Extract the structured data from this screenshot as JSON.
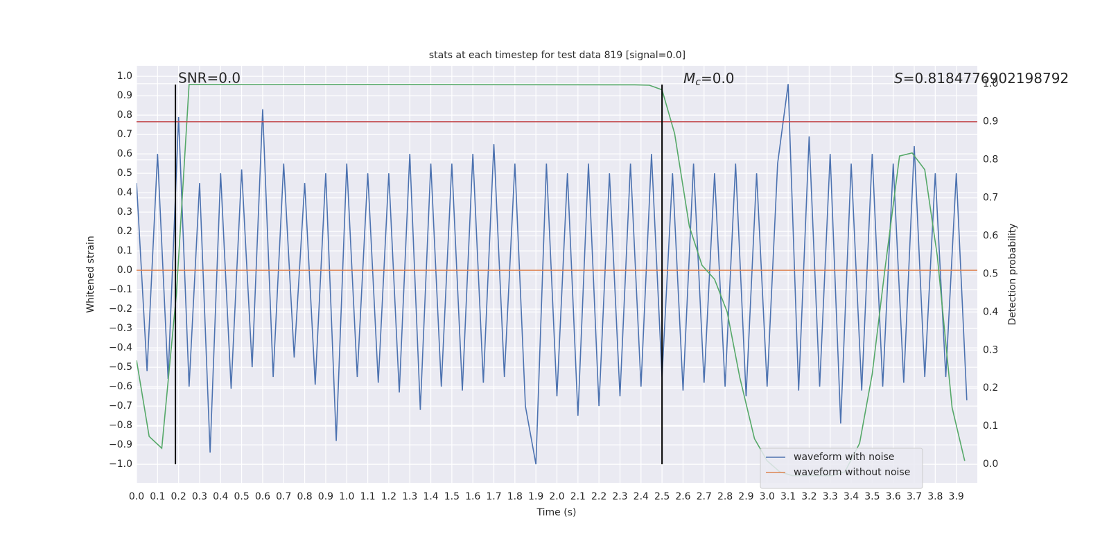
{
  "chart_data": {
    "type": "line",
    "title": "stats at each timestep for test data 819 [signal=0.0]",
    "xlabel": "Time (s)",
    "ylabel": "Whitened strain",
    "y2label": "Detection probability",
    "annotations": {
      "snr": "SNR=0.0",
      "mc": {
        "symbol": "M",
        "subscript": "c",
        "text": "=0.0"
      },
      "s": {
        "symbol": "S",
        "text": "=0.8184776902198792"
      }
    },
    "xlim": [
      0,
      4.0
    ],
    "ylim": [
      -1.096,
      1.054
    ],
    "y2lim": [
      -0.049,
      1.047
    ],
    "xticks": [
      {
        "value": 0,
        "label": "0.0"
      },
      {
        "value": 0.1,
        "label": "0.1"
      },
      {
        "value": 0.2,
        "label": "0.2"
      },
      {
        "value": 0.3,
        "label": "0.3"
      },
      {
        "value": 0.4,
        "label": "0.4"
      },
      {
        "value": 0.5,
        "label": "0.5"
      },
      {
        "value": 0.6,
        "label": "0.6"
      },
      {
        "value": 0.7,
        "label": "0.7"
      },
      {
        "value": 0.8,
        "label": "0.8"
      },
      {
        "value": 0.9,
        "label": "0.9"
      },
      {
        "value": 1,
        "label": "1.0"
      },
      {
        "value": 1.1,
        "label": "1.1"
      },
      {
        "value": 1.2,
        "label": "1.2"
      },
      {
        "value": 1.3,
        "label": "1.3"
      },
      {
        "value": 1.4,
        "label": "1.4"
      },
      {
        "value": 1.5,
        "label": "1.5"
      },
      {
        "value": 1.6,
        "label": "1.6"
      },
      {
        "value": 1.7,
        "label": "1.7"
      },
      {
        "value": 1.8,
        "label": "1.8"
      },
      {
        "value": 1.9,
        "label": "1.9"
      },
      {
        "value": 2,
        "label": "2.0"
      },
      {
        "value": 2.1,
        "label": "2.1"
      },
      {
        "value": 2.2,
        "label": "2.2"
      },
      {
        "value": 2.3,
        "label": "2.3"
      },
      {
        "value": 2.4,
        "label": "2.4"
      },
      {
        "value": 2.5,
        "label": "2.5"
      },
      {
        "value": 2.6,
        "label": "2.6"
      },
      {
        "value": 2.7,
        "label": "2.7"
      },
      {
        "value": 2.8,
        "label": "2.8"
      },
      {
        "value": 2.9,
        "label": "2.9"
      },
      {
        "value": 3,
        "label": "3.0"
      },
      {
        "value": 3.1,
        "label": "3.1"
      },
      {
        "value": 3.2,
        "label": "3.2"
      },
      {
        "value": 3.3,
        "label": "3.3"
      },
      {
        "value": 3.4,
        "label": "3.4"
      },
      {
        "value": 3.5,
        "label": "3.5"
      },
      {
        "value": 3.6,
        "label": "3.6"
      },
      {
        "value": 3.7,
        "label": "3.7"
      },
      {
        "value": 3.8,
        "label": "3.8"
      },
      {
        "value": 3.9,
        "label": "3.9"
      }
    ],
    "yticks": [
      {
        "value": -1,
        "label": "−1.0"
      },
      {
        "value": -0.9,
        "label": "−0.9"
      },
      {
        "value": -0.8,
        "label": "−0.8"
      },
      {
        "value": -0.7,
        "label": "−0.7"
      },
      {
        "value": -0.6,
        "label": "−0.6"
      },
      {
        "value": -0.5,
        "label": "−0.5"
      },
      {
        "value": -0.4,
        "label": "−0.4"
      },
      {
        "value": -0.3,
        "label": "−0.3"
      },
      {
        "value": -0.2,
        "label": "−0.2"
      },
      {
        "value": -0.1,
        "label": "−0.1"
      },
      {
        "value": 0,
        "label": "0.0"
      },
      {
        "value": 0.1,
        "label": "0.1"
      },
      {
        "value": 0.2,
        "label": "0.2"
      },
      {
        "value": 0.3,
        "label": "0.3"
      },
      {
        "value": 0.4,
        "label": "0.4"
      },
      {
        "value": 0.5,
        "label": "0.5"
      },
      {
        "value": 0.6,
        "label": "0.6"
      },
      {
        "value": 0.7,
        "label": "0.7"
      },
      {
        "value": 0.8,
        "label": "0.8"
      },
      {
        "value": 0.9,
        "label": "0.9"
      },
      {
        "value": 1,
        "label": "1.0"
      }
    ],
    "y2ticks": [
      {
        "value": 0,
        "label": "0.0"
      },
      {
        "value": 0.1,
        "label": "0.1"
      },
      {
        "value": 0.2,
        "label": "0.2"
      },
      {
        "value": 0.3,
        "label": "0.3"
      },
      {
        "value": 0.4,
        "label": "0.4"
      },
      {
        "value": 0.5,
        "label": "0.5"
      },
      {
        "value": 0.6,
        "label": "0.6"
      },
      {
        "value": 0.7,
        "label": "0.7"
      },
      {
        "value": 0.8,
        "label": "0.8"
      },
      {
        "value": 0.9,
        "label": "0.9"
      },
      {
        "value": 1,
        "label": "1.0"
      }
    ],
    "grid": true,
    "legend": "lower right",
    "vlines": {
      "x": [
        0.185,
        2.5
      ],
      "range": [
        -1.0,
        0.957
      ],
      "color": "#000000"
    },
    "hline": {
      "y": 0.9,
      "axis": "y2",
      "color": "#c44e52"
    },
    "series": [
      {
        "name": "waveform with noise",
        "color": "#4c72b0",
        "x": [
          0,
          0.05,
          0.1,
          0.15,
          0.2,
          0.25,
          0.3,
          0.35,
          0.4,
          0.45,
          0.5,
          0.55,
          0.6,
          0.65,
          0.7,
          0.75,
          0.8,
          0.85,
          0.9,
          0.95,
          1,
          1.05,
          1.1,
          1.15,
          1.2,
          1.25,
          1.3,
          1.35,
          1.4,
          1.45,
          1.5,
          1.55,
          1.6,
          1.65,
          1.7,
          1.75,
          1.8,
          1.85,
          1.9,
          1.95,
          2,
          2.05,
          2.1,
          2.15,
          2.2,
          2.25,
          2.3,
          2.35,
          2.4,
          2.45,
          2.5,
          2.55,
          2.6,
          2.65,
          2.7,
          2.75,
          2.8,
          2.85,
          2.9,
          2.95,
          3,
          3.05,
          3.1,
          3.15,
          3.2,
          3.25,
          3.3,
          3.35,
          3.4,
          3.45,
          3.5,
          3.55,
          3.6,
          3.65,
          3.7,
          3.75,
          3.8,
          3.85,
          3.9,
          3.95
        ],
        "values": [
          0.45,
          -0.52,
          0.6,
          -0.56,
          0.79,
          -0.6,
          0.45,
          -0.94,
          0.5,
          -0.61,
          0.52,
          -0.5,
          0.83,
          -0.55,
          0.55,
          -0.45,
          0.45,
          -0.59,
          0.5,
          -0.88,
          0.55,
          -0.55,
          0.5,
          -0.58,
          0.5,
          -0.63,
          0.6,
          -0.72,
          0.55,
          -0.6,
          0.55,
          -0.62,
          0.6,
          -0.58,
          0.65,
          -0.55,
          0.55,
          -0.7,
          -1.0,
          0.55,
          -0.65,
          0.5,
          -0.75,
          0.55,
          -0.7,
          0.5,
          -0.65,
          0.55,
          -0.6,
          0.6,
          -0.55,
          0.5,
          -0.62,
          0.55,
          -0.58,
          0.5,
          -0.6,
          0.55,
          -0.65,
          0.5,
          -0.6,
          0.55,
          0.96,
          -0.62,
          0.69,
          -0.6,
          0.6,
          -0.79,
          0.55,
          -0.62,
          0.6,
          -0.6,
          0.55,
          -0.58,
          0.64,
          -0.55,
          0.5,
          -0.55,
          0.5,
          -0.67
        ]
      },
      {
        "name": "waveform without noise",
        "color": "#dd8452",
        "x": [
          0,
          4.0
        ],
        "values": [
          0,
          0
        ]
      },
      {
        "color": "#55a868",
        "axis": "y2",
        "x": [
          0,
          0.06,
          0.12,
          0.19,
          0.25,
          2.37,
          2.44,
          2.5,
          2.56,
          2.63,
          2.69,
          2.75,
          2.81,
          2.87,
          2.94,
          3.0,
          3.06,
          3.12,
          3.19,
          3.25,
          3.31,
          3.37,
          3.44,
          3.5,
          3.56,
          3.63,
          3.69,
          3.75,
          3.81,
          3.88,
          3.94
        ],
        "values": [
          0.273,
          0.073,
          0.042,
          0.45,
          0.998,
          0.997,
          0.996,
          0.984,
          0.869,
          0.625,
          0.523,
          0.486,
          0.4,
          0.228,
          0.067,
          0.009,
          -0.02,
          -0.03,
          -0.03,
          -0.03,
          -0.03,
          -0.02,
          0.055,
          0.237,
          0.51,
          0.81,
          0.818,
          0.774,
          0.546,
          0.149,
          0.009
        ]
      }
    ]
  }
}
